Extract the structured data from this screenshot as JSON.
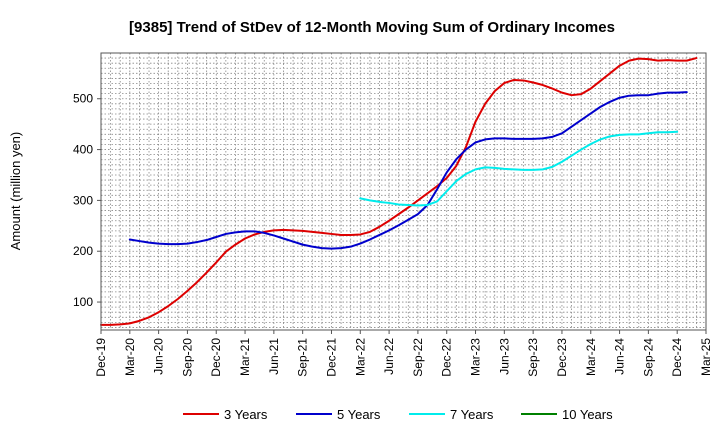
{
  "chart_data": {
    "type": "line",
    "title": "[9385]  Trend of StDev of 12-Month Moving Sum of Ordinary Incomes",
    "xlabel": "",
    "ylabel": "Amount (million yen)",
    "ylim": [
      45,
      590
    ],
    "yticks": [
      100,
      200,
      300,
      400,
      500
    ],
    "grid": true,
    "legend_position": "bottom",
    "x_tick_labels": [
      "Dec-19",
      "Mar-20",
      "Jun-20",
      "Sep-20",
      "Dec-20",
      "Mar-21",
      "Jun-21",
      "Sep-21",
      "Dec-21",
      "Mar-22",
      "Jun-22",
      "Sep-22",
      "Dec-22",
      "Mar-23",
      "Jun-23",
      "Sep-23",
      "Dec-23",
      "Mar-24",
      "Jun-24",
      "Sep-24",
      "Dec-24",
      "Mar-25"
    ],
    "x_start": "Dec-19",
    "x_unit": "month index from Dec-19",
    "series": [
      {
        "name": "3 Years",
        "color": "#dd0000",
        "start_index": 0,
        "values": [
          55,
          55,
          56,
          58,
          63,
          70,
          80,
          92,
          106,
          122,
          139,
          158,
          178,
          199,
          213,
          225,
          233,
          238,
          241,
          242,
          241,
          240,
          238,
          236,
          234,
          232,
          232,
          233,
          238,
          248,
          260,
          273,
          286,
          300,
          314,
          328,
          344,
          368,
          405,
          455,
          490,
          515,
          531,
          537,
          536,
          532,
          527,
          520,
          512,
          507,
          509,
          520,
          535,
          550,
          565,
          575,
          579,
          578,
          575,
          576,
          575,
          575,
          580
        ]
      },
      {
        "name": "5 Years",
        "color": "#0000cc",
        "start_index": 3,
        "values": [
          223,
          220,
          217,
          215,
          214,
          214,
          215,
          218,
          222,
          228,
          234,
          237,
          239,
          239,
          236,
          231,
          225,
          219,
          213,
          209,
          206,
          205,
          206,
          209,
          215,
          223,
          232,
          241,
          251,
          262,
          273,
          291,
          322,
          355,
          381,
          400,
          414,
          420,
          422,
          422,
          421,
          421,
          421,
          422,
          425,
          432,
          445,
          458,
          471,
          484,
          494,
          502,
          506,
          507,
          507,
          510,
          512,
          512,
          513
        ]
      },
      {
        "name": "7 Years",
        "color": "#00ecec",
        "start_index": 27,
        "values": [
          304,
          300,
          297,
          295,
          292,
          291,
          290,
          291,
          298,
          318,
          338,
          352,
          361,
          365,
          364,
          362,
          361,
          360,
          360,
          361,
          366,
          376,
          388,
          400,
          411,
          420,
          426,
          429,
          430,
          430,
          432,
          434,
          434,
          435
        ]
      },
      {
        "name": "10 Years",
        "color": "#008000",
        "start_index": 0,
        "values": []
      }
    ]
  }
}
